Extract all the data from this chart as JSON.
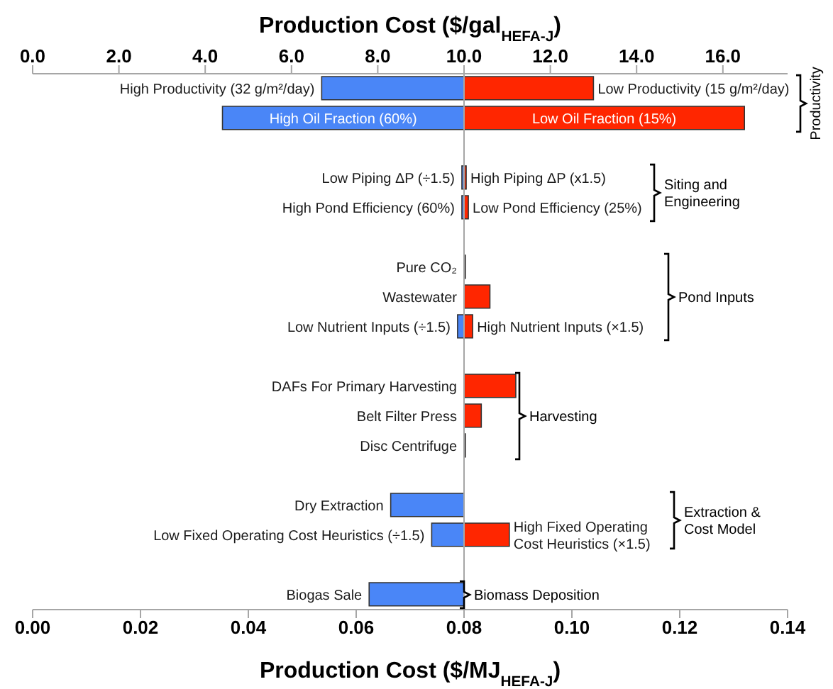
{
  "chart_data": {
    "type": "bar",
    "orientation": "horizontal",
    "xlabel": "Production Cost ($/MJ$_{HEFA-J}$)",
    "x2label": "Production Cost ($/gal$_{HEFA-J}$)",
    "categories": [
      "High Productivity (32 g/m²/day)",
      "High Oil Fraction (60%)",
      null,
      "Low Piping ΔP (÷1.5)",
      "High Pond Efficiency (60%)",
      null,
      "Pure CO₂",
      "Wastewater",
      "Low Nutrient Inputs (÷1.5)",
      null,
      "DAFs For Primary Harvesting",
      "Belt Filter Press",
      "Disc Centrifuge",
      null,
      "Dry Extraction",
      "Low Fixed Operating Cost Heuristics (÷1.5)",
      null,
      "Biogas Sale"
    ],
    "series": [
      {
        "color": "#4a86f7",
        "axis": "x2",
        "base": [
          10.0,
          10.0,
          null,
          10.0,
          10.0,
          null,
          null,
          null,
          10.0,
          null,
          null,
          null,
          null,
          null,
          10.0,
          10.0,
          null,
          10.0
        ],
        "values": [
          -3.3,
          -5.6,
          null,
          -0.05,
          -0.05,
          null,
          null,
          null,
          -0.15,
          null,
          null,
          null,
          null,
          null,
          -1.7,
          -0.75,
          null,
          -2.2
        ]
      },
      {
        "color": "#ff2600",
        "axis": "x2",
        "base": [
          10.0,
          10.0,
          null,
          10.0,
          10.0,
          null,
          10.0,
          10.0,
          10.0,
          null,
          10.0,
          10.0,
          10.0,
          null,
          null,
          10.0,
          null,
          null
        ],
        "values": [
          3.0,
          6.5,
          null,
          0.05,
          0.1,
          null,
          0.03,
          0.6,
          0.2,
          null,
          1.2,
          0.4,
          0.03,
          null,
          null,
          1.05,
          null,
          null
        ]
      }
    ],
    "xlim": [
      0,
      0.14
    ],
    "xticks": [
      {
        "value": 0,
        "label": "0.00"
      },
      {
        "value": 0.02,
        "label": "0.02"
      },
      {
        "value": 0.04,
        "label": "0.04"
      },
      {
        "value": 0.06,
        "label": "0.06"
      },
      {
        "value": 0.08,
        "label": "0.08"
      },
      {
        "value": 0.1,
        "label": "0.10"
      },
      {
        "value": 0.12,
        "label": "0.12"
      },
      {
        "value": 0.14,
        "label": "0.14"
      }
    ],
    "x2lim": [
      0,
      17.5
    ],
    "x2ticks": [
      {
        "value": 0,
        "label": "0.0"
      },
      {
        "value": 2,
        "label": "2.0"
      },
      {
        "value": 4,
        "label": "4.0"
      },
      {
        "value": 6,
        "label": "6.0"
      },
      {
        "value": 8,
        "label": "8.0"
      },
      {
        "value": 10,
        "label": "10.0"
      },
      {
        "value": 12,
        "label": "12.0"
      },
      {
        "value": 14,
        "label": "14.0"
      },
      {
        "value": 16,
        "label": "16.0"
      }
    ],
    "grid": false,
    "legend": false,
    "annotations": [
      "Low Productivity (15 g/m²/day)",
      "Low Oil Fraction (15%)",
      "High Piping ΔP (x1.5)",
      "Low Pond Efficiency (25%)",
      "High Nutrient Inputs (×1.5)",
      "High Fixed Operating\nCost Heuristics (×1.5)",
      "Productivity",
      "Siting and\nEngineering",
      "Pond Inputs",
      "Harvesting",
      "Extraction &\nCost Model",
      "Biomass Deposition"
    ]
  }
}
